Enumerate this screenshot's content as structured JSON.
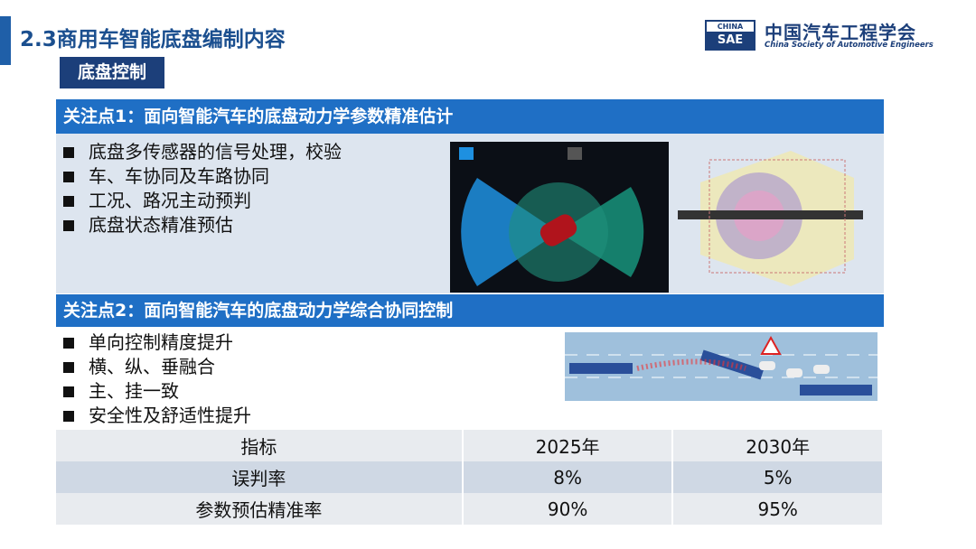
{
  "header": {
    "title": "2.3商用车智能底盘编制内容",
    "logo": {
      "badge_top": "CHINA",
      "badge_bottom": "SAE",
      "name": "中国汽车工程学会",
      "english": "China Society of Automotive Engineers"
    }
  },
  "subtitle": "底盘控制",
  "sections": [
    {
      "title": "关注点1：面向智能汽车的底盘动力学参数精准估计",
      "bullets": [
        "底盘多传感器的信号处理，校验",
        "车、车协同及车路协同",
        "工况、路况主动预判",
        "底盘状态精准预估"
      ]
    },
    {
      "title": "关注点2：面向智能汽车的底盘动力学综合协同控制",
      "bullets": [
        "单向控制精度提升",
        "横、纵、垂融合",
        "主、挂一致",
        "安全性及舒适性提升"
      ]
    }
  ],
  "table": {
    "header": [
      "指标",
      "2025年",
      "2030年"
    ],
    "rows": [
      [
        "误判率",
        "8%",
        "5%"
      ],
      [
        "参数预估精准率",
        "90%",
        "95%"
      ]
    ]
  }
}
